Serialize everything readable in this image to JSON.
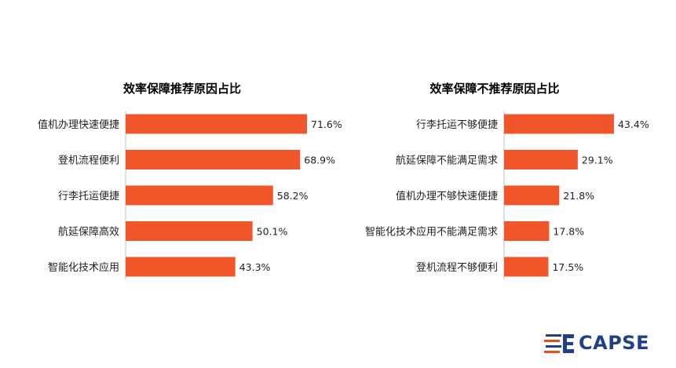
{
  "brand": {
    "name": "CAPSE",
    "bar_color": "#F0562A",
    "logo_color": "#1F3F8A",
    "logo_accent": "#E84E1B"
  },
  "chart_data": [
    {
      "type": "bar",
      "orientation": "horizontal",
      "title": "效率保障推荐原因占比",
      "categories": [
        "值机办理快速便捷",
        "登机流程便利",
        "行李托运便捷",
        "航延保障高效",
        "智能化技术应用"
      ],
      "values": [
        71.6,
        68.9,
        58.2,
        50.1,
        43.3
      ],
      "value_labels": [
        "71.6%",
        "68.9%",
        "58.2%",
        "50.1%",
        "43.3%"
      ],
      "unit": "%",
      "xlim": [
        0,
        75
      ],
      "grid": false,
      "legend": "none"
    },
    {
      "type": "bar",
      "orientation": "horizontal",
      "title": "效率保障不推荐原因占比",
      "categories": [
        "行李托运不够便捷",
        "航延保障不能满足需求",
        "值机办理不够快速便捷",
        "智能化技术应用不能满足需求",
        "登机流程不够便利"
      ],
      "values": [
        43.4,
        29.1,
        21.8,
        17.8,
        17.5
      ],
      "value_labels": [
        "43.4%",
        "29.1%",
        "21.8%",
        "17.8%",
        "17.5%"
      ],
      "unit": "%",
      "xlim": [
        0,
        75
      ],
      "grid": false,
      "legend": "none"
    }
  ]
}
